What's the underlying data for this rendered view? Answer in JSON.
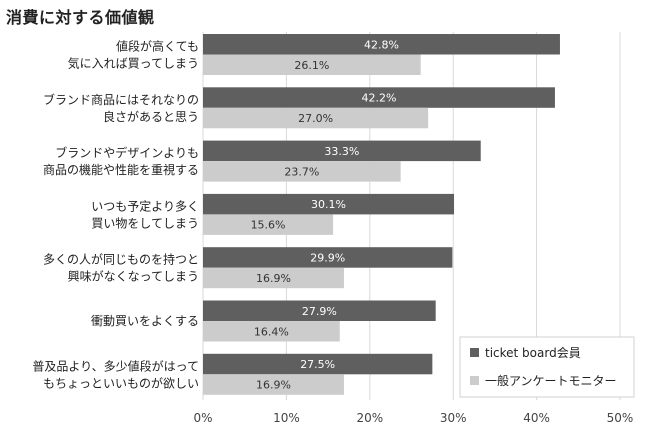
{
  "chart_data": {
    "type": "bar",
    "orientation": "horizontal",
    "title": "消費に対する価値観",
    "categories": [
      [
        "値段が高くても",
        "気に入れば買ってしまう"
      ],
      [
        "ブランド商品にはそれなりの",
        "良さがあると思う"
      ],
      [
        "ブランドやデザインよりも",
        "商品の機能や性能を重視する"
      ],
      [
        "いつも予定より多く",
        "買い物をしてしまう"
      ],
      [
        "多くの人が同じものを持つと",
        "興味がなくなってしまう"
      ],
      [
        "衝動買いをよくする"
      ],
      [
        "普及品より、多少値段がはって",
        "もちょっといいものが欲しい"
      ]
    ],
    "series": [
      {
        "name": "ticket board会員",
        "color": "#5f5f5f",
        "values": [
          42.8,
          42.2,
          33.3,
          30.1,
          29.9,
          27.9,
          27.5
        ],
        "labels": [
          "42.8%",
          "42.2%",
          "33.3%",
          "30.1%",
          "29.9%",
          "27.9%",
          "27.5%"
        ]
      },
      {
        "name": "一般アンケートモニター",
        "color": "#cccccc",
        "values": [
          26.1,
          27.0,
          23.7,
          15.6,
          16.9,
          16.4,
          16.9
        ],
        "labels": [
          "26.1%",
          "27.0%",
          "23.7%",
          "15.6%",
          "16.9%",
          "16.4%",
          "16.9%"
        ]
      }
    ],
    "xlim": [
      0,
      50
    ],
    "xticks": [
      0,
      10,
      20,
      30,
      40,
      50
    ],
    "xtick_labels": [
      "0%",
      "10%",
      "20%",
      "30%",
      "40%",
      "50%"
    ],
    "grid": true,
    "legend": "bottom-right"
  }
}
